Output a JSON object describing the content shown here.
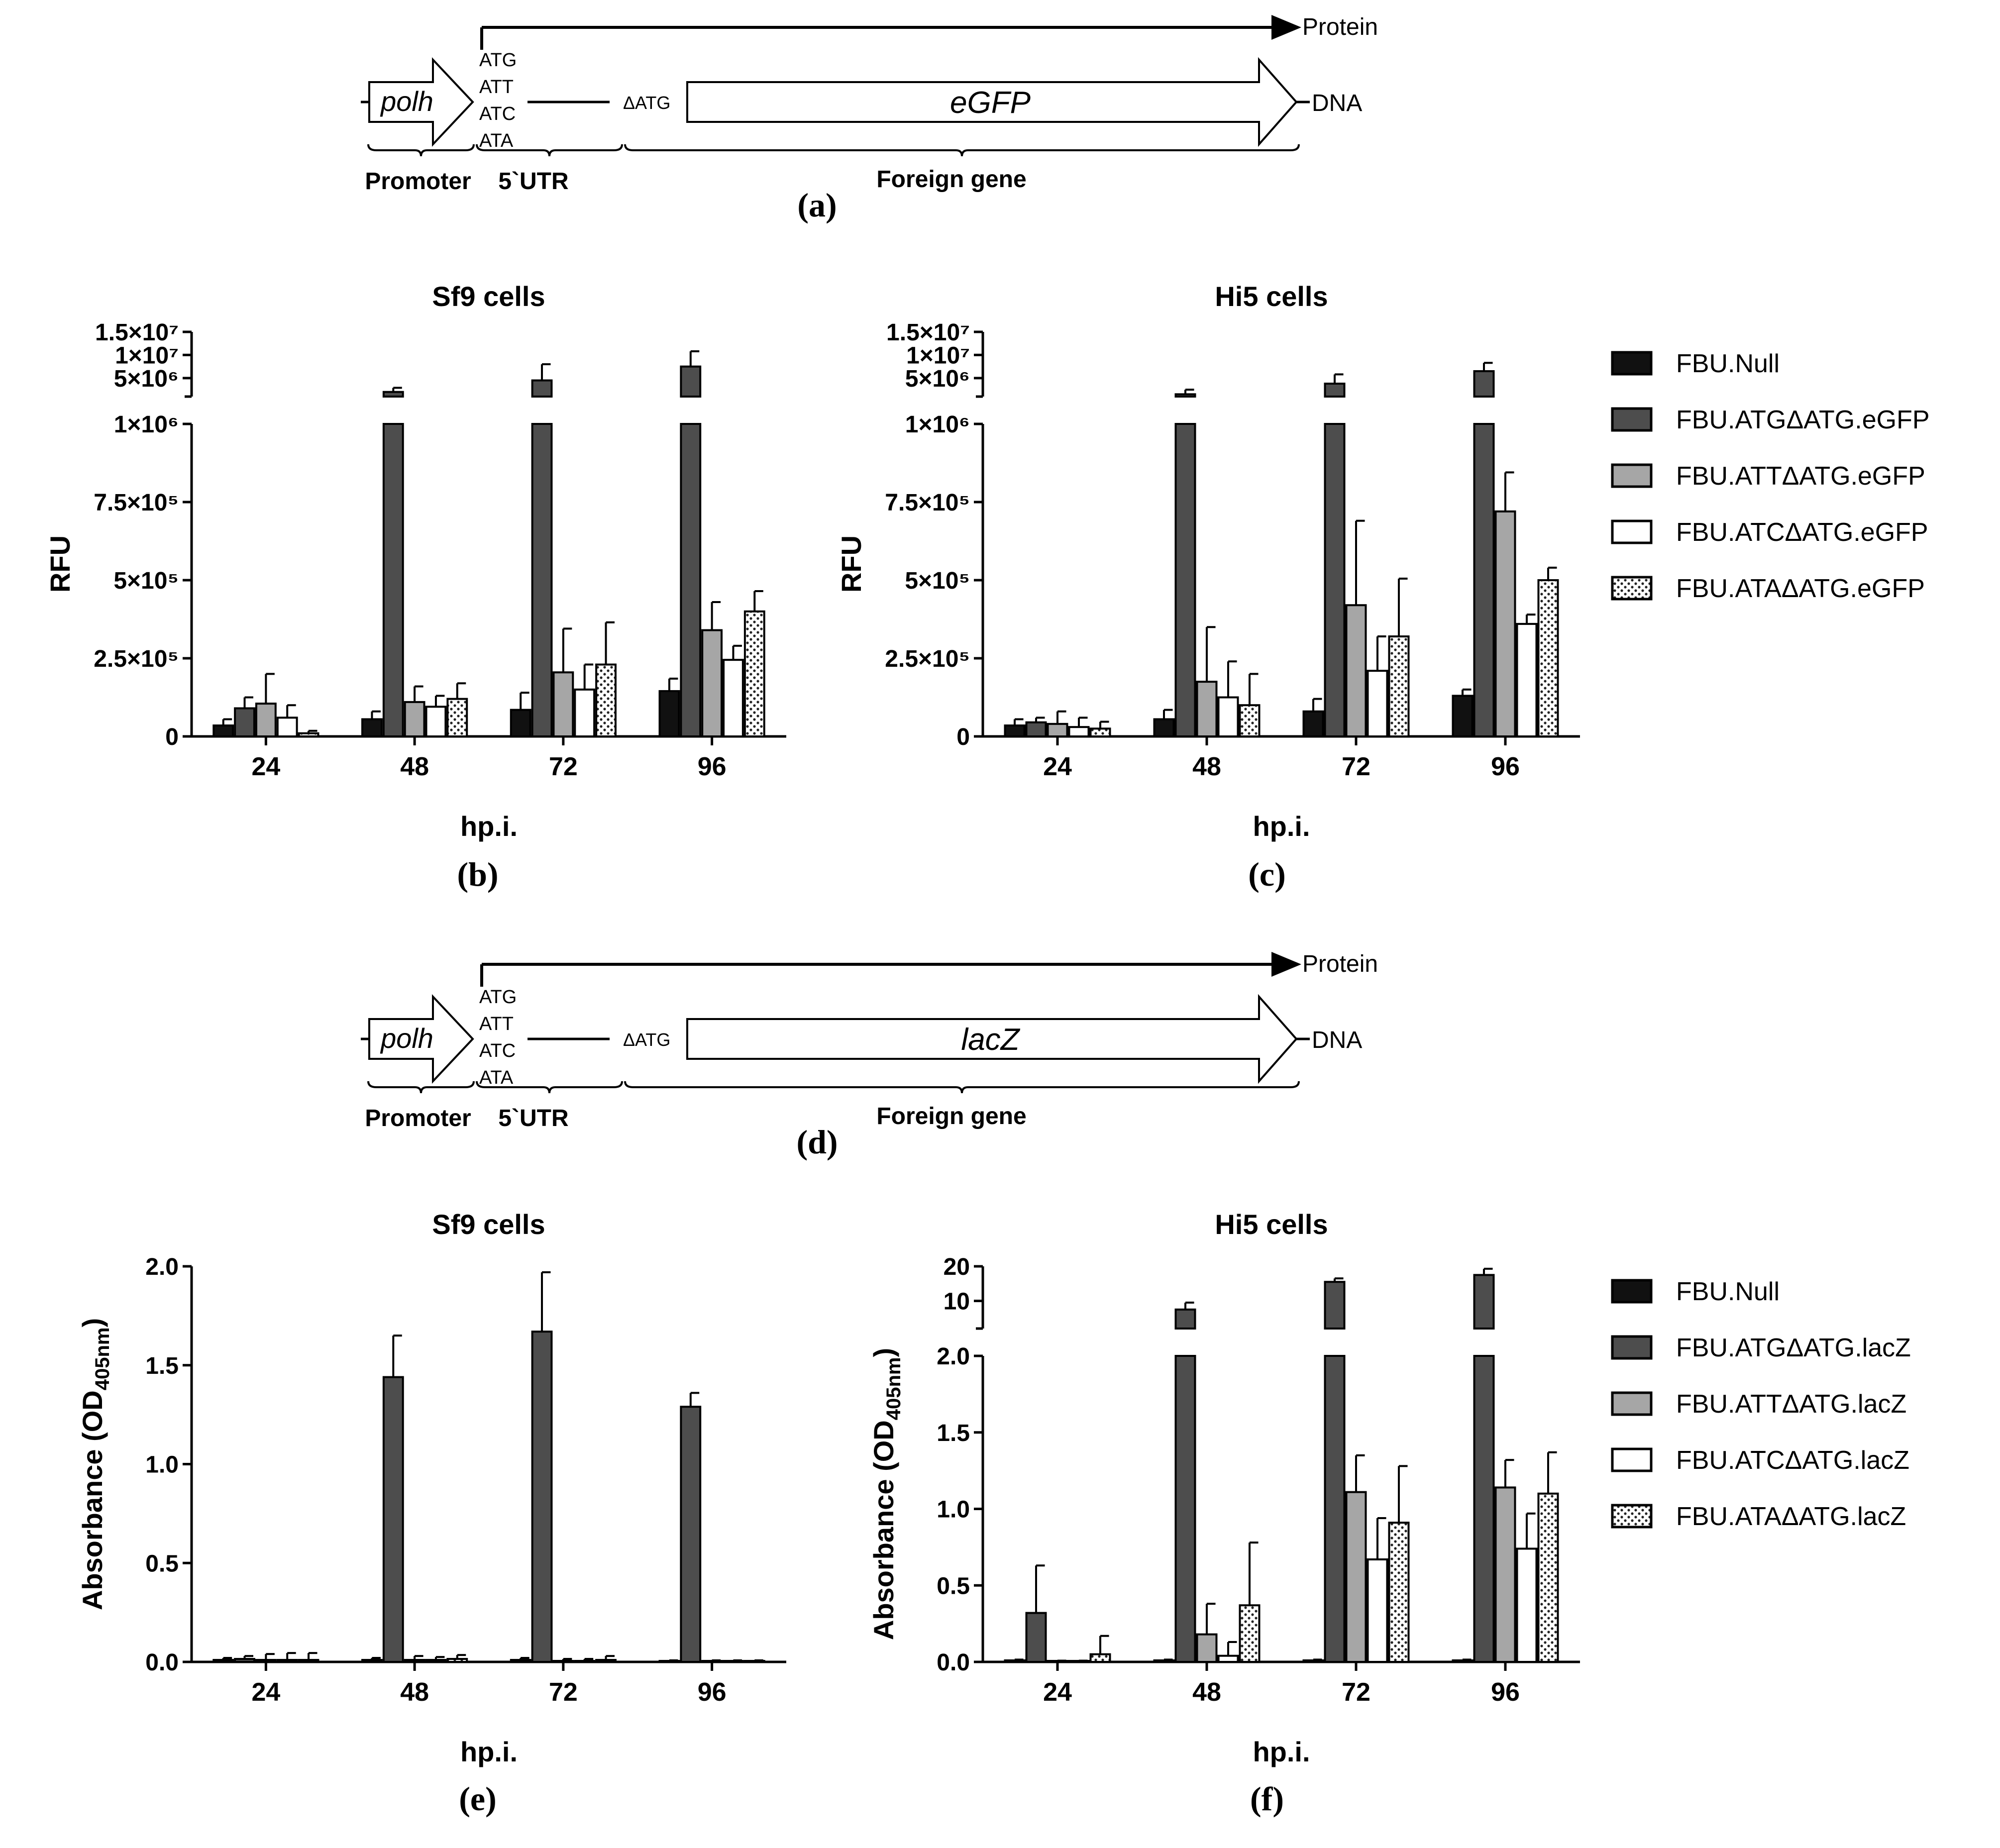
{
  "colors": {
    "null": "#111111",
    "atg": "#4d4d4d",
    "att": "#a6a6a6",
    "atc": "#ffffff",
    "ata": "#ffffff",
    "ink": "#000000"
  },
  "diagrams": [
    {
      "panel": "(a)",
      "protein_label": "Protein",
      "dna_label": "DNA",
      "promoter_name": "polh",
      "codons": [
        "ATG",
        "ATT",
        "ATC",
        "ATA"
      ],
      "delta_atg": "ΔATG",
      "gene_name": "eGFP",
      "brace_labels": [
        "Promoter",
        "5`UTR",
        "Foreign gene"
      ]
    },
    {
      "panel": "(d)",
      "protein_label": "Protein",
      "dna_label": "DNA",
      "promoter_name": "polh",
      "codons": [
        "ATG",
        "ATT",
        "ATC",
        "ATA"
      ],
      "delta_atg": "ΔATG",
      "gene_name": "lacZ",
      "brace_labels": [
        "Promoter",
        "5`UTR",
        "Foreign gene"
      ]
    }
  ],
  "chart_data": [
    {
      "panel": "(b)",
      "type": "bar",
      "title": "Sf9 cells",
      "xlabel": "hp.i.",
      "ylabel": "RFU",
      "categories": [
        "24",
        "48",
        "72",
        "96"
      ],
      "axis_break": true,
      "lower_ylim": [
        0,
        1000000
      ],
      "upper_ylim": [
        1000000,
        15000000
      ],
      "lower_ticks": [
        {
          "v": 0,
          "l": "0"
        },
        {
          "v": 250000,
          "l": "2.5×10⁵"
        },
        {
          "v": 500000,
          "l": "5×10⁵"
        },
        {
          "v": 750000,
          "l": "7.5×10⁵"
        },
        {
          "v": 1000000,
          "l": "1×10⁶"
        }
      ],
      "upper_ticks": [
        {
          "v": 5000000,
          "l": "5×10⁶"
        },
        {
          "v": 10000000,
          "l": "1×10⁷"
        },
        {
          "v": 15000000,
          "l": "1.5×10⁷"
        }
      ],
      "series": [
        {
          "name": "FBU.Null",
          "style": "null",
          "values": [
            35000,
            55000,
            85000,
            145000
          ],
          "errors": [
            20000,
            25000,
            55000,
            40000
          ]
        },
        {
          "name": "FBU.ATGΔATG.eGFP",
          "style": "atg",
          "values": [
            90000,
            2000000,
            4500000,
            7500000
          ],
          "errors": [
            35000,
            900000,
            3500000,
            3300000
          ]
        },
        {
          "name": "FBU.ATTΔATG.eGFP",
          "style": "att",
          "values": [
            105000,
            110000,
            205000,
            340000
          ],
          "errors": [
            95000,
            50000,
            140000,
            90000
          ]
        },
        {
          "name": "FBU.ATCΔATG.eGFP",
          "style": "atc",
          "values": [
            60000,
            95000,
            150000,
            245000
          ],
          "errors": [
            40000,
            35000,
            80000,
            45000
          ]
        },
        {
          "name": "FBU.ATAΔATG.eGFP",
          "style": "ata",
          "values": [
            10000,
            120000,
            230000,
            400000
          ],
          "errors": [
            8000,
            50000,
            135000,
            65000
          ]
        }
      ]
    },
    {
      "panel": "(c)",
      "type": "bar",
      "title": "Hi5 cells",
      "xlabel": "hp.i.",
      "ylabel": "RFU",
      "categories": [
        "24",
        "48",
        "72",
        "96"
      ],
      "axis_break": true,
      "lower_ylim": [
        0,
        1000000
      ],
      "upper_ylim": [
        1000000,
        15000000
      ],
      "lower_ticks": [
        {
          "v": 0,
          "l": "0"
        },
        {
          "v": 250000,
          "l": "2.5×10⁵"
        },
        {
          "v": 500000,
          "l": "5×10⁵"
        },
        {
          "v": 750000,
          "l": "7.5×10⁵"
        },
        {
          "v": 1000000,
          "l": "1×10⁶"
        }
      ],
      "upper_ticks": [
        {
          "v": 5000000,
          "l": "5×10⁶"
        },
        {
          "v": 10000000,
          "l": "1×10⁷"
        },
        {
          "v": 15000000,
          "l": "1.5×10⁷"
        }
      ],
      "series": [
        {
          "name": "FBU.Null",
          "style": "null",
          "values": [
            35000,
            55000,
            80000,
            130000
          ],
          "errors": [
            20000,
            30000,
            40000,
            20000
          ]
        },
        {
          "name": "FBU.ATGΔATG.eGFP",
          "style": "atg",
          "values": [
            45000,
            1500000,
            3800000,
            6500000
          ],
          "errors": [
            15000,
            1000000,
            2000000,
            1800000
          ]
        },
        {
          "name": "FBU.ATTΔATG.eGFP",
          "style": "att",
          "values": [
            40000,
            175000,
            420000,
            720000
          ],
          "errors": [
            40000,
            175000,
            270000,
            125000
          ]
        },
        {
          "name": "FBU.ATCΔATG.eGFP",
          "style": "atc",
          "values": [
            30000,
            125000,
            210000,
            360000
          ],
          "errors": [
            30000,
            115000,
            110000,
            30000
          ]
        },
        {
          "name": "FBU.ATAΔATG.eGFP",
          "style": "ata",
          "values": [
            25000,
            100000,
            320000,
            500000
          ],
          "errors": [
            22000,
            100000,
            185000,
            40000
          ]
        }
      ]
    },
    {
      "panel": "(e)",
      "type": "bar",
      "title": "Sf9 cells",
      "xlabel": "hp.i.",
      "ylabel": "Absorbance (OD405nm)",
      "ylabel_main": "Absorbance (OD",
      "ylabel_sub": "405nm",
      "ylabel_end": ")",
      "categories": [
        "24",
        "48",
        "72",
        "96"
      ],
      "axis_break": false,
      "lower_ylim": [
        0,
        2.0
      ],
      "lower_ticks": [
        {
          "v": 0,
          "l": "0.0"
        },
        {
          "v": 0.5,
          "l": "0.5"
        },
        {
          "v": 1.0,
          "l": "1.0"
        },
        {
          "v": 1.5,
          "l": "1.5"
        },
        {
          "v": 2.0,
          "l": "2.0"
        }
      ],
      "series": [
        {
          "name": "FBU.Null",
          "style": "null",
          "values": [
            0.01,
            0.01,
            0.01,
            0.005
          ],
          "errors": [
            0.01,
            0.01,
            0.01,
            0.003
          ]
        },
        {
          "name": "FBU.ATGΔATG.lacZ",
          "style": "atg",
          "values": [
            0.015,
            1.44,
            1.67,
            1.29
          ],
          "errors": [
            0.015,
            0.21,
            0.3,
            0.07
          ]
        },
        {
          "name": "FBU.ATTΔATG.lacZ",
          "style": "att",
          "values": [
            0.01,
            0.01,
            0.005,
            0.005
          ],
          "errors": [
            0.03,
            0.02,
            0.01,
            0.003
          ]
        },
        {
          "name": "FBU.ATCΔATG.lacZ",
          "style": "atc",
          "values": [
            0.01,
            0.01,
            0.005,
            0.005
          ],
          "errors": [
            0.035,
            0.015,
            0.01,
            0.003
          ]
        },
        {
          "name": "FBU.ATAΔATG.lacZ",
          "style": "ata",
          "values": [
            0.01,
            0.015,
            0.01,
            0.005
          ],
          "errors": [
            0.035,
            0.02,
            0.02,
            0.003
          ]
        }
      ]
    },
    {
      "panel": "(f)",
      "type": "bar",
      "title": "Hi5 cells",
      "xlabel": "hp.i.",
      "ylabel": "Absorbance (OD405nm)",
      "ylabel_main": "Absorbance (OD",
      "ylabel_sub": "405nm",
      "ylabel_end": ")",
      "categories": [
        "24",
        "48",
        "72",
        "96"
      ],
      "axis_break": true,
      "lower_ylim": [
        0,
        2.0
      ],
      "upper_ylim": [
        2.0,
        20
      ],
      "lower_ticks": [
        {
          "v": 0,
          "l": "0.0"
        },
        {
          "v": 0.5,
          "l": "0.5"
        },
        {
          "v": 1.0,
          "l": "1.0"
        },
        {
          "v": 1.5,
          "l": "1.5"
        },
        {
          "v": 2.0,
          "l": "2.0"
        }
      ],
      "upper_ticks": [
        {
          "v": 10,
          "l": "10"
        },
        {
          "v": 20,
          "l": "20"
        }
      ],
      "series": [
        {
          "name": "FBU.Null",
          "style": "null",
          "values": [
            0.01,
            0.01,
            0.01,
            0.01
          ],
          "errors": [
            0.005,
            0.005,
            0.005,
            0.005
          ]
        },
        {
          "name": "FBU.ATGΔATG.lacZ",
          "style": "atg",
          "values": [
            0.32,
            7.5,
            15.5,
            17.5
          ],
          "errors": [
            0.31,
            2.0,
            1.0,
            1.8
          ]
        },
        {
          "name": "FBU.ATTΔATG.lacZ",
          "style": "att",
          "values": [
            0.005,
            0.18,
            1.11,
            1.14
          ],
          "errors": [
            0.003,
            0.2,
            0.24,
            0.18
          ]
        },
        {
          "name": "FBU.ATCΔATG.lacZ",
          "style": "atc",
          "values": [
            0.005,
            0.04,
            0.67,
            0.74
          ],
          "errors": [
            0.003,
            0.09,
            0.27,
            0.23
          ]
        },
        {
          "name": "FBU.ATAΔATG.lacZ",
          "style": "ata",
          "values": [
            0.05,
            0.37,
            0.91,
            1.1
          ],
          "errors": [
            0.12,
            0.41,
            0.37,
            0.27
          ]
        }
      ]
    }
  ]
}
